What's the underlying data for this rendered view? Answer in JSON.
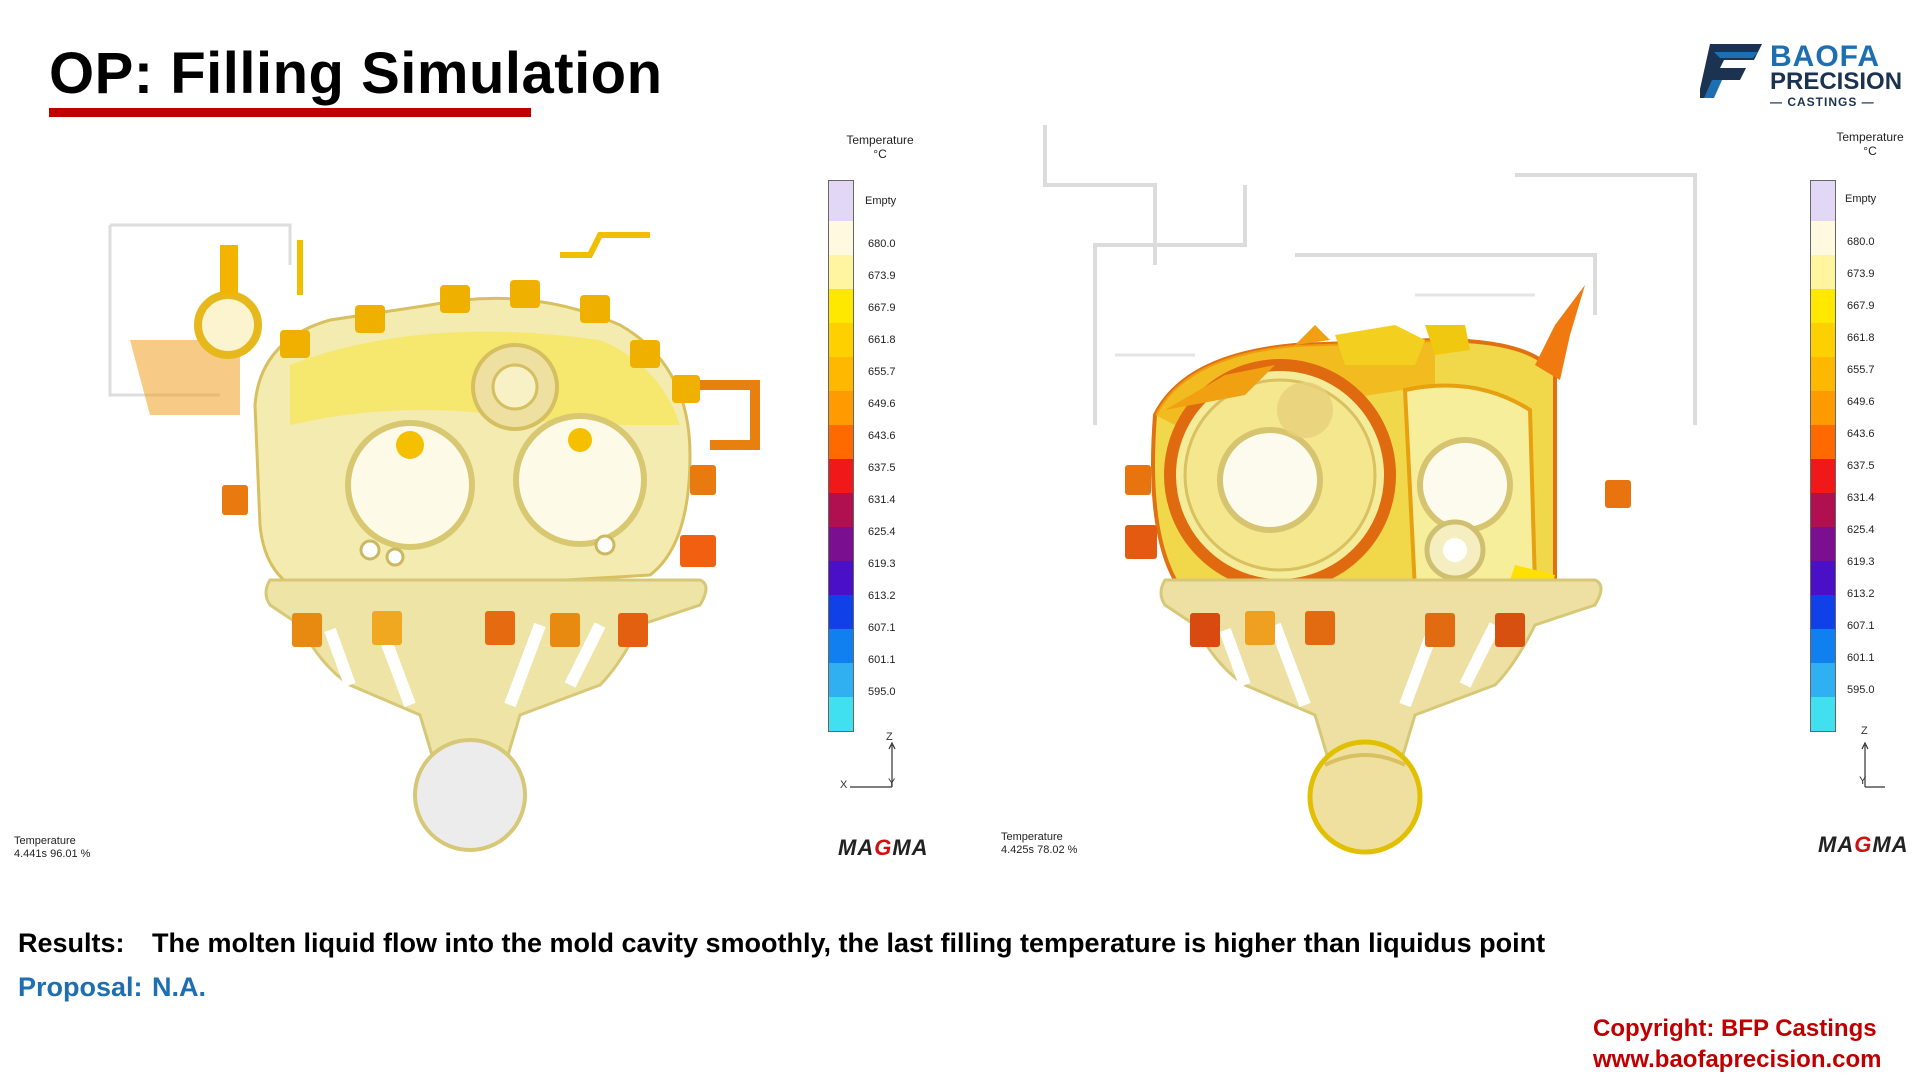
{
  "header": {
    "title": "OP: Filling Simulation",
    "underline_color": "#c00000"
  },
  "logo": {
    "line1": "BAOFA",
    "line2": "PRECISION",
    "line3": "— CASTINGS —",
    "brand_color": "#1e6fb1"
  },
  "legend": {
    "title_line1": "Temperature",
    "title_line2": "°C",
    "empty_label": "Empty",
    "ticks": [
      "680.0",
      "673.9",
      "667.9",
      "661.8",
      "655.7",
      "649.6",
      "643.6",
      "637.5",
      "631.4",
      "625.4",
      "619.3",
      "613.2",
      "607.1",
      "601.1",
      "595.0"
    ],
    "colors": [
      "#fff9e0",
      "#fff4a0",
      "#ffe800",
      "#ffd000",
      "#ffb800",
      "#ff9a00",
      "#ff6a00",
      "#f01818",
      "#b01050",
      "#7a1090",
      "#4a10c8",
      "#1040e8",
      "#1080f0",
      "#30b0f0",
      "#40e0f0"
    ]
  },
  "axes": {
    "z": "Z",
    "x": "X",
    "y": "Y"
  },
  "simulations": [
    {
      "stat_label": "Temperature",
      "stat_value": "4.441s 96.01 %",
      "vendor": "MAGMA"
    },
    {
      "stat_label": "Temperature",
      "stat_value": "4.425s 78.02 %",
      "vendor": "MAGMA"
    }
  ],
  "results": {
    "label": "Results:",
    "text": "The molten liquid flow into the mold cavity smoothly,  the last filling temperature is higher than liquidus point"
  },
  "proposal": {
    "label": "Proposal:",
    "value": "N.A."
  },
  "footer": {
    "copyright": "Copyright: BFP Castings",
    "website": "www.baofaprecision.com",
    "color": "#c00000"
  }
}
